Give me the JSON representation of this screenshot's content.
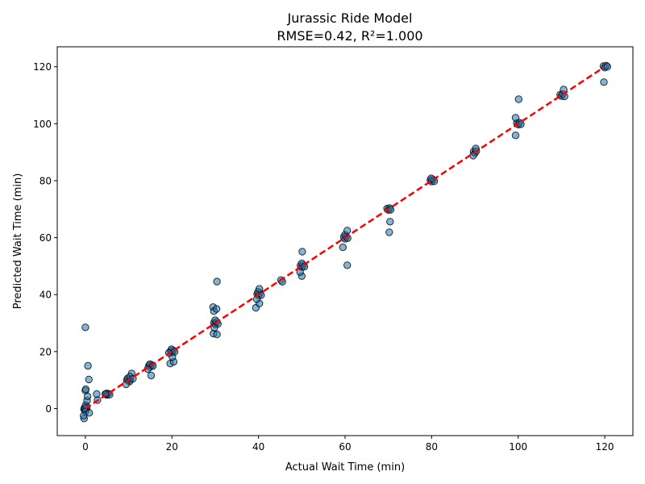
{
  "chart_data": {
    "type": "scatter",
    "title": "Jurassic Ride Model",
    "subtitle": "RMSE=0.42, R²=1.000",
    "xlabel": "Actual Wait Time (min)",
    "ylabel": "Predicted Wait Time (min)",
    "xlim": [
      -6.5,
      126.5
    ],
    "ylim": [
      -9.5,
      127
    ],
    "xticks": [
      0,
      20,
      40,
      60,
      80,
      100,
      120
    ],
    "yticks": [
      0,
      20,
      40,
      60,
      80,
      100,
      120
    ],
    "grid": false,
    "legend": "none",
    "colors": {
      "points": "#1f77b4",
      "point_edge": "#000000",
      "fit_line": "#ff0000"
    },
    "reference_line": {
      "style": "dashed",
      "from": [
        0,
        0
      ],
      "to": [
        120,
        120
      ]
    },
    "series": [
      {
        "values": [
          [
            0,
            0
          ],
          [
            0.2,
            0.3
          ],
          [
            -0.3,
            -0.2
          ],
          [
            0.1,
            0.5
          ],
          [
            -0.1,
            -0.4
          ],
          [
            0.3,
            0.1
          ],
          [
            -0.2,
            0.2
          ],
          [
            0,
            -1
          ],
          [
            -0.3,
            -3.5
          ],
          [
            0.1,
            1.2
          ],
          [
            0.4,
            2.8
          ],
          [
            0.5,
            4.3
          ],
          [
            0,
            6.3
          ],
          [
            0.1,
            6.8
          ],
          [
            0.6,
            15
          ],
          [
            0.8,
            10.2
          ],
          [
            0,
            28.5
          ],
          [
            0.9,
            -1.5
          ],
          [
            -0.4,
            -2.5
          ],
          [
            2.8,
            3
          ],
          [
            2.6,
            5.1
          ],
          [
            4.7,
            5
          ],
          [
            5,
            4.8
          ],
          [
            5.3,
            5.2
          ],
          [
            4.9,
            5.3
          ],
          [
            5.6,
            4.9
          ],
          [
            4.6,
            5.1
          ],
          [
            9.6,
            10.1
          ],
          [
            10,
            9.8
          ],
          [
            10.4,
            10.3
          ],
          [
            9.8,
            10.6
          ],
          [
            10.2,
            9.5
          ],
          [
            10.7,
            12.3
          ],
          [
            9.4,
            8.5
          ],
          [
            10.3,
            11.2
          ],
          [
            11,
            10.5
          ],
          [
            14.7,
            15.1
          ],
          [
            15,
            14.6
          ],
          [
            15.3,
            15.3
          ],
          [
            14.9,
            15.6
          ],
          [
            15.6,
            14.9
          ],
          [
            15.2,
            11.6
          ],
          [
            14.4,
            13.9
          ],
          [
            19.7,
            20.2
          ],
          [
            20,
            19.7
          ],
          [
            20.3,
            20.4
          ],
          [
            19.9,
            20.8
          ],
          [
            20.6,
            19.9
          ],
          [
            19.6,
            15.8
          ],
          [
            20.4,
            16.4
          ],
          [
            20.1,
            18.1
          ],
          [
            19.3,
            19.5
          ],
          [
            29.7,
            30.1
          ],
          [
            30,
            29.6
          ],
          [
            30.3,
            30.4
          ],
          [
            30,
            31
          ],
          [
            30.6,
            29.7
          ],
          [
            29.5,
            35.6
          ],
          [
            29.7,
            34.2
          ],
          [
            30.3,
            35
          ],
          [
            30.4,
            44.6
          ],
          [
            29.6,
            26.3
          ],
          [
            30.4,
            26
          ],
          [
            29.8,
            28.4
          ],
          [
            39.7,
            40.2
          ],
          [
            40,
            39.7
          ],
          [
            40.3,
            40.5
          ],
          [
            39.9,
            41
          ],
          [
            40.6,
            39.8
          ],
          [
            39.4,
            35.4
          ],
          [
            40.2,
            36.9
          ],
          [
            40.2,
            42
          ],
          [
            39.6,
            38.4
          ],
          [
            45.2,
            45.1
          ],
          [
            45.5,
            44.5
          ],
          [
            49.7,
            50.2
          ],
          [
            50,
            49.6
          ],
          [
            50.3,
            50.4
          ],
          [
            50,
            51
          ],
          [
            50.6,
            49.8
          ],
          [
            50.1,
            55.1
          ],
          [
            50,
            46.5
          ],
          [
            49.6,
            47.9
          ],
          [
            59.7,
            60.2
          ],
          [
            60,
            59.6
          ],
          [
            60.3,
            60.4
          ],
          [
            60,
            61
          ],
          [
            60.6,
            59.8
          ],
          [
            59.5,
            56.6
          ],
          [
            60.5,
            62.5
          ],
          [
            60.5,
            50.3
          ],
          [
            69.7,
            70.2
          ],
          [
            70,
            69.7
          ],
          [
            70.3,
            70.4
          ],
          [
            70.5,
            69.8
          ],
          [
            70.4,
            65.6
          ],
          [
            70.2,
            61.9
          ],
          [
            79.7,
            80.2
          ],
          [
            80,
            79.7
          ],
          [
            80.3,
            80.4
          ],
          [
            80.6,
            79.8
          ],
          [
            79.9,
            80.8
          ],
          [
            89.7,
            90.2
          ],
          [
            90,
            89.7
          ],
          [
            90.3,
            90.4
          ],
          [
            89.6,
            88.8
          ],
          [
            90.2,
            91.3
          ],
          [
            99.7,
            100.2
          ],
          [
            100,
            99.7
          ],
          [
            100.3,
            100.4
          ],
          [
            100.6,
            99.8
          ],
          [
            99.4,
            102.1
          ],
          [
            99.4,
            95.9
          ],
          [
            100.1,
            108.6
          ],
          [
            109.7,
            110.2
          ],
          [
            110,
            109.7
          ],
          [
            110.3,
            110.4
          ],
          [
            110.5,
            112
          ],
          [
            110.7,
            109.6
          ],
          [
            119.7,
            120.2
          ],
          [
            120,
            119.7
          ],
          [
            120.3,
            120.4
          ],
          [
            120.6,
            120
          ],
          [
            119.8,
            114.6
          ]
        ]
      }
    ]
  }
}
